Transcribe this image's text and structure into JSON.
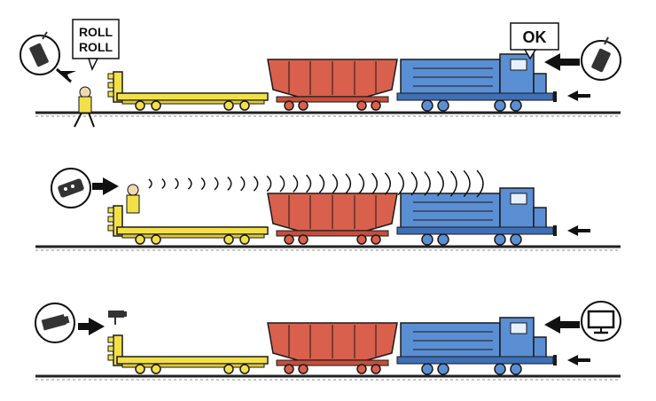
{
  "scene_top": {
    "speech_bubble_left": [
      "ROLL",
      "ROLL"
    ],
    "speech_bubble_right": "OK",
    "icon_left": "walkie-talkie-icon",
    "icon_right": "walkie-talkie-icon"
  },
  "scene_middle": {
    "icon_left": "remote-control-icon"
  },
  "scene_bottom": {
    "icon_left": "camera-icon",
    "icon_right": "monitor-icon"
  },
  "colors": {
    "flatcar": "#f2e04a",
    "hopper": "#d9604c",
    "locomotive": "#5b8fd4",
    "rail": "#222222",
    "outline": "#1a1a1a"
  }
}
